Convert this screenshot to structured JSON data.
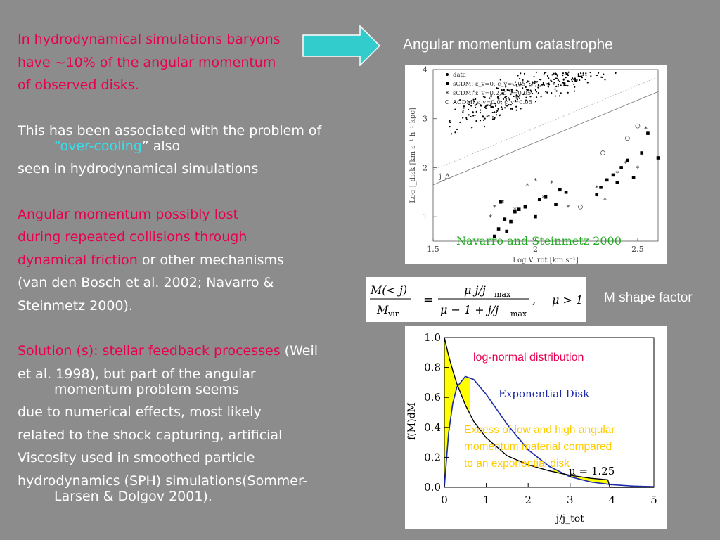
{
  "left": {
    "p1": [
      "In hydrodynamical simulations baryons",
      "have ~10% of the angular momentum",
      "of observed disks."
    ],
    "p2_a": "This has been associated with the problem of",
    "p2_q1": "“",
    "p2_cyan": "over-cooling",
    "p2_b": "” also",
    "p2_c": "seen in hydrodynamical simulations",
    "p3_red": [
      "Angular momentum possibly lost",
      "during repeated collisions through",
      "dynamical friction"
    ],
    "p3_white": " or other mechanisms",
    "p3_ref": [
      "(van den Bosch et al. 2002; Navarro &",
      "Steinmetz 2000)."
    ],
    "p4_red": "Solution (s): stellar feedback processes",
    "p4_white_1": " (Weil",
    "p4_lines": [
      "et al. 1998), but part of the angular",
      "momentum problem seems",
      "due to numerical effects, most likely",
      "related to the shock capturing, artificial",
      "Viscosity used in smoothed particle",
      "hydrodynamics (SPH) simulations(Sommer-",
      "Larsen & Dolgov 2001)."
    ]
  },
  "right_title": "Angular momentum catastrophe",
  "m_shape_label": "M shape factor",
  "equation": {
    "lhs_num": "M(< j)",
    "lhs_den": "M",
    "lhs_den_sub": "vir",
    "rhs_num": "μ j/j",
    "rhs_num_sub": "max",
    "rhs_den": "μ − 1 + j/j",
    "rhs_den_sub": "max",
    "cond": "μ > 1"
  },
  "colors": {
    "background": "#8c8c8c",
    "red_text": "#e8004f",
    "cyan_text": "#35e0ee",
    "arrow": "#33cccc",
    "green_caption": "#22aa22",
    "yellow_fill": "#ffff00",
    "blue_curve": "#1a2aa8"
  },
  "chart_data": [
    {
      "type": "scatter",
      "xlabel": "Log V_rot [km s⁻¹]",
      "ylabel": "Log j_disk [km s⁻¹ h⁻¹ kpc]",
      "xlim": [
        1.5,
        2.6
      ],
      "ylim": [
        0.5,
        4
      ],
      "x_ticks": [
        "1.5",
        "2",
        "2.5"
      ],
      "y_ticks": [
        "1",
        "2",
        "3",
        "4"
      ],
      "legend": [
        "data",
        "sCDM: ε_v=0, c_v=0.05",
        "sCDM: ε_v=0.2, c_v=0.05",
        "ΛCDM: ε_v=0.0, c_v=0.05"
      ],
      "line_label": "j_Δ",
      "caption": "Navarro and Steinmetz 2000",
      "series": [
        {
          "name": "sCDM: ε_v=0, c_v=0.05",
          "marker": "square",
          "x": [
            1.8,
            1.82,
            1.85,
            1.88,
            1.9,
            1.95,
            2.0,
            2.02,
            2.05,
            2.1,
            2.12,
            2.15,
            1.83,
            1.86,
            1.92,
            2.3,
            2.32,
            2.35,
            2.38,
            2.4,
            2.42,
            2.45,
            2.48,
            2.52,
            2.55,
            2.6
          ],
          "y": [
            0.6,
            0.75,
            0.95,
            0.9,
            1.1,
            1.2,
            1.0,
            1.35,
            1.4,
            1.25,
            1.55,
            1.5,
            1.3,
            0.7,
            1.15,
            1.45,
            1.6,
            1.75,
            1.85,
            1.7,
            2.0,
            2.15,
            1.8,
            2.3,
            2.7,
            2.2
          ]
        },
        {
          "name": "sCDM: ε_v=0.2, c_v=0.05",
          "marker": "star",
          "x": [
            1.78,
            1.8,
            1.84,
            1.9,
            1.96,
            2.0,
            2.04,
            2.08,
            2.16,
            2.3,
            2.34,
            2.4,
            2.44,
            2.5,
            2.54
          ],
          "y": [
            1.0,
            1.2,
            1.3,
            1.15,
            1.65,
            1.75,
            1.4,
            1.7,
            1.2,
            1.6,
            1.35,
            1.9,
            2.1,
            2.0,
            2.8
          ]
        },
        {
          "name": "ΛCDM: ε_v=0.0, c_v=0.05",
          "marker": "circle",
          "x": [
            2.22,
            2.33,
            2.45,
            2.5
          ],
          "y": [
            1.2,
            2.3,
            2.6,
            2.85
          ]
        }
      ]
    },
    {
      "type": "line",
      "xlabel": "j/j_tot",
      "ylabel": "f(M)dM",
      "xlim": [
        0,
        5
      ],
      "ylim": [
        0,
        1.0
      ],
      "x_ticks": [
        "0",
        "1",
        "2",
        "3",
        "4",
        "5"
      ],
      "y_ticks": [
        "0.0",
        "0.2",
        "0.4",
        "0.6",
        "0.8",
        "1.0"
      ],
      "annotations": [
        "log-normal distribution",
        "Exponential Disk",
        "Excess of  low and high angular momentum material compared to an  exponential disk",
        "μ = 1.25"
      ],
      "series": [
        {
          "name": "Exponential Disk",
          "x": [
            0,
            0.1,
            0.2,
            0.3,
            0.5,
            0.7,
            1.0,
            1.5,
            2.0,
            2.5,
            3.0,
            3.5,
            4.0,
            4.5,
            5.0
          ],
          "y": [
            0,
            0.36,
            0.56,
            0.67,
            0.74,
            0.72,
            0.62,
            0.42,
            0.25,
            0.14,
            0.07,
            0.035,
            0.017,
            0.008,
            0.004
          ]
        },
        {
          "name": "μ = 1.25",
          "x": [
            0,
            0.05,
            0.1,
            0.2,
            0.3,
            0.5,
            0.7,
            1.0,
            1.5,
            2.0,
            2.5,
            3.0,
            3.5,
            3.9,
            3.95,
            4.0,
            5.0
          ],
          "y": [
            1.0,
            0.94,
            0.88,
            0.78,
            0.69,
            0.55,
            0.44,
            0.33,
            0.21,
            0.15,
            0.11,
            0.08,
            0.06,
            0.05,
            0.0,
            0.0,
            0.0
          ]
        }
      ]
    }
  ]
}
